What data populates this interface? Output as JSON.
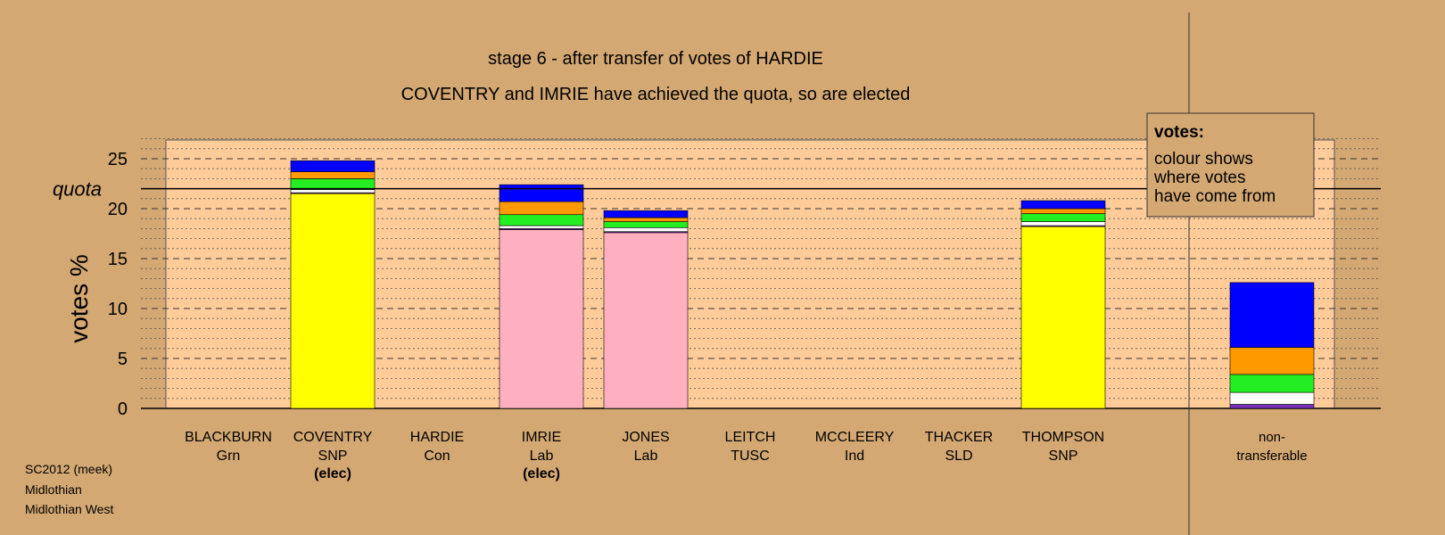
{
  "chart_data": {
    "type": "bar",
    "stacked": true,
    "title": "stage 6 - after transfer of votes of HARDIE",
    "subtitle": "COVENTRY and IMRIE have achieved the quota, so are elected",
    "ylabel": "votes %",
    "ylim": [
      0,
      27
    ],
    "yticks": [
      0,
      5,
      10,
      15,
      20,
      25
    ],
    "quota": {
      "label": "quota",
      "value": 22
    },
    "grid": true,
    "legend_box": {
      "title": "votes:",
      "lines": [
        "colour shows",
        "where votes",
        "have come from"
      ],
      "position": "top-right"
    },
    "categories": [
      {
        "name": "BLACKBURN",
        "party": "Grn",
        "note": ""
      },
      {
        "name": "COVENTRY",
        "party": "SNP",
        "note": "(elec)"
      },
      {
        "name": "HARDIE",
        "party": "Con",
        "note": ""
      },
      {
        "name": "IMRIE",
        "party": "Lab",
        "note": "(elec)"
      },
      {
        "name": "JONES",
        "party": "Lab",
        "note": ""
      },
      {
        "name": "LEITCH",
        "party": "TUSC",
        "note": ""
      },
      {
        "name": "MCCLEERY",
        "party": "Ind",
        "note": ""
      },
      {
        "name": "THACKER",
        "party": "SLD",
        "note": ""
      },
      {
        "name": "THOMPSON",
        "party": "SNP",
        "note": ""
      }
    ],
    "bars": [
      {
        "category": "BLACKBURN",
        "segments": []
      },
      {
        "category": "COVENTRY",
        "segments": [
          {
            "color": "#ffff00",
            "value": 21.5
          },
          {
            "color": "#7b2fbe",
            "value": 0.1
          },
          {
            "color": "#ffffff",
            "value": 0.3
          },
          {
            "color": "#22ee22",
            "value": 1.1
          },
          {
            "color": "#ff9900",
            "value": 0.7
          },
          {
            "color": "#0000ff",
            "value": 1.1
          }
        ]
      },
      {
        "category": "HARDIE",
        "segments": []
      },
      {
        "category": "IMRIE",
        "segments": [
          {
            "color": "#ffb0c0",
            "value": 17.9
          },
          {
            "color": "#7b2fbe",
            "value": 0.1
          },
          {
            "color": "#ffffff",
            "value": 0.3
          },
          {
            "color": "#22ee22",
            "value": 1.1
          },
          {
            "color": "#ff9900",
            "value": 1.3
          },
          {
            "color": "#0000ff",
            "value": 1.7
          }
        ]
      },
      {
        "category": "JONES",
        "segments": [
          {
            "color": "#ffb0c0",
            "value": 17.6
          },
          {
            "color": "#7b2fbe",
            "value": 0.1
          },
          {
            "color": "#ffffff",
            "value": 0.4
          },
          {
            "color": "#22ee22",
            "value": 0.6
          },
          {
            "color": "#ff9900",
            "value": 0.4
          },
          {
            "color": "#0000ff",
            "value": 0.7
          }
        ]
      },
      {
        "category": "LEITCH",
        "segments": []
      },
      {
        "category": "MCCLEERY",
        "segments": []
      },
      {
        "category": "THACKER",
        "segments": []
      },
      {
        "category": "THOMPSON",
        "segments": [
          {
            "color": "#ffff00",
            "value": 18.2
          },
          {
            "color": "#7b2fbe",
            "value": 0.1
          },
          {
            "color": "#ffffff",
            "value": 0.4
          },
          {
            "color": "#22ee22",
            "value": 0.8
          },
          {
            "color": "#ff9900",
            "value": 0.5
          },
          {
            "color": "#0000ff",
            "value": 0.8
          }
        ]
      }
    ],
    "nontransferable": {
      "label_line1": "non-",
      "label_line2": "transferable",
      "segments": [
        {
          "color": "#7b2fbe",
          "value": 0.4
        },
        {
          "color": "#ffffff",
          "value": 1.2
        },
        {
          "color": "#22ee22",
          "value": 1.8
        },
        {
          "color": "#ff9900",
          "value": 2.7
        },
        {
          "color": "#0000ff",
          "value": 6.5
        }
      ]
    },
    "colors": {
      "background": "#d4a872",
      "plot_panel": "#ffcc99",
      "axis": "#000000"
    }
  },
  "footer": {
    "line1": "SC2012 (meek)",
    "line2": "Midlothian",
    "line3": "Midlothian West"
  }
}
